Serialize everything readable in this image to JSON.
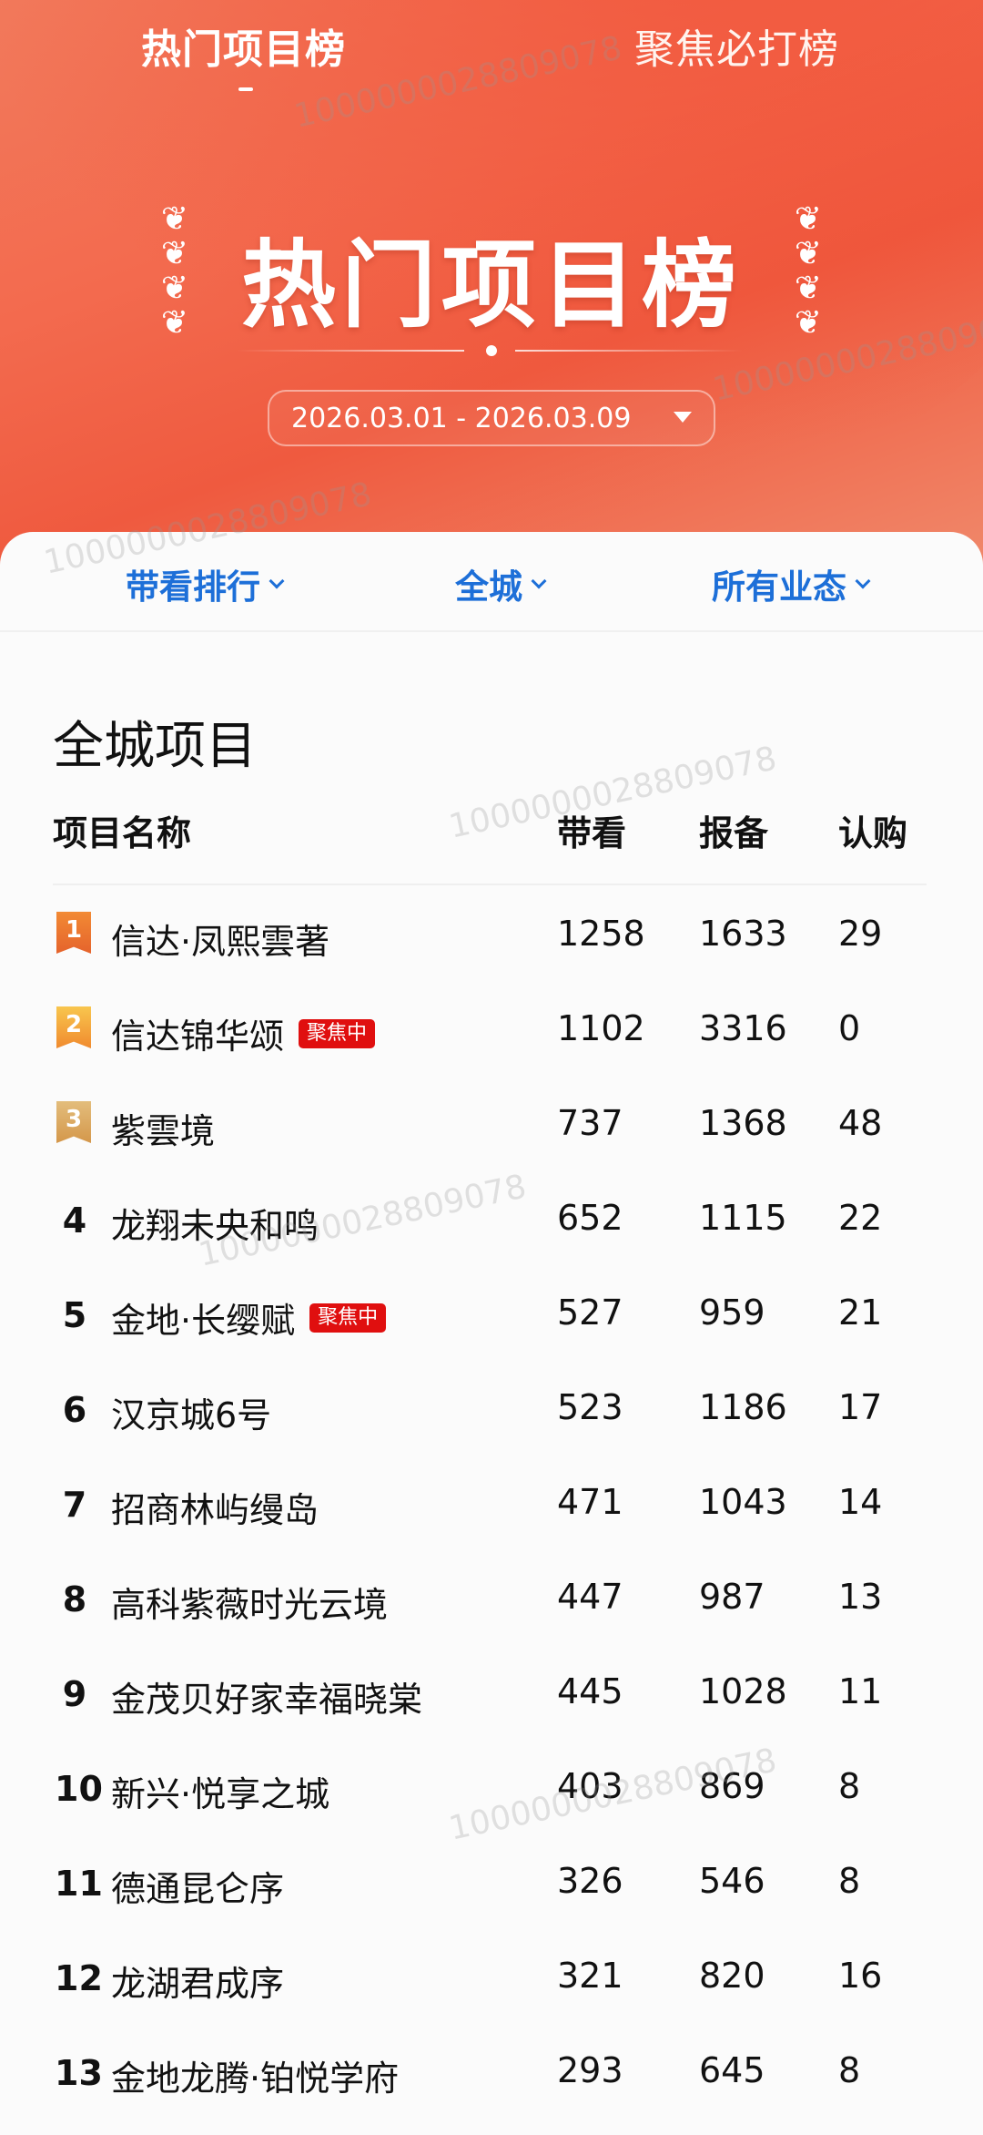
{
  "tabs": [
    {
      "label": "热门项目榜",
      "active": true
    },
    {
      "label": "聚焦必打榜",
      "active": false
    }
  ],
  "hero": {
    "title": "热门项目榜",
    "date_range": "2026.03.01 - 2026.03.09",
    "laurel_icon": "laurel-icon"
  },
  "filters": [
    {
      "label": "带看排行"
    },
    {
      "label": "全城"
    },
    {
      "label": "所有业态"
    }
  ],
  "section_title": "全城项目",
  "columns": [
    "项目名称",
    "带看",
    "报备",
    "认购"
  ],
  "colors": {
    "accent": "#f05a40",
    "filter_blue": "#1d6fd8",
    "tag_red": "#e00f0f",
    "rank1": "#ef7a2e",
    "rank2": "#f4a83a",
    "rank3": "#d9a45a"
  },
  "rows": [
    {
      "rank": "1",
      "name": "信达·凤熙雲著",
      "tag": "",
      "daikan": "1258",
      "baobei": "1633",
      "rengou": "29"
    },
    {
      "rank": "2",
      "name": "信达锦华颂",
      "tag": "聚焦中",
      "daikan": "1102",
      "baobei": "3316",
      "rengou": "0"
    },
    {
      "rank": "3",
      "name": "紫雲境",
      "tag": "",
      "daikan": "737",
      "baobei": "1368",
      "rengou": "48"
    },
    {
      "rank": "4",
      "name": "龙翔未央和鸣",
      "tag": "",
      "daikan": "652",
      "baobei": "1115",
      "rengou": "22"
    },
    {
      "rank": "5",
      "name": "金地·长缨赋",
      "tag": "聚焦中",
      "daikan": "527",
      "baobei": "959",
      "rengou": "21"
    },
    {
      "rank": "6",
      "name": "汉京城6号",
      "tag": "",
      "daikan": "523",
      "baobei": "1186",
      "rengou": "17"
    },
    {
      "rank": "7",
      "name": "招商林屿缦岛",
      "tag": "",
      "daikan": "471",
      "baobei": "1043",
      "rengou": "14"
    },
    {
      "rank": "8",
      "name": "高科紫薇时光云境",
      "tag": "",
      "daikan": "447",
      "baobei": "987",
      "rengou": "13"
    },
    {
      "rank": "9",
      "name": "金茂贝好家幸福晓棠",
      "tag": "",
      "daikan": "445",
      "baobei": "1028",
      "rengou": "11"
    },
    {
      "rank": "10",
      "name": "新兴·悦享之城",
      "tag": "",
      "daikan": "403",
      "baobei": "869",
      "rengou": "8"
    },
    {
      "rank": "11",
      "name": "德通昆仑序",
      "tag": "",
      "daikan": "326",
      "baobei": "546",
      "rengou": "8"
    },
    {
      "rank": "12",
      "name": "龙湖君成序",
      "tag": "",
      "daikan": "321",
      "baobei": "820",
      "rengou": "16"
    },
    {
      "rank": "13",
      "name": "金地龙腾·铂悦学府",
      "tag": "",
      "daikan": "293",
      "baobei": "645",
      "rengou": "8"
    }
  ],
  "watermark": "1000000028809078"
}
